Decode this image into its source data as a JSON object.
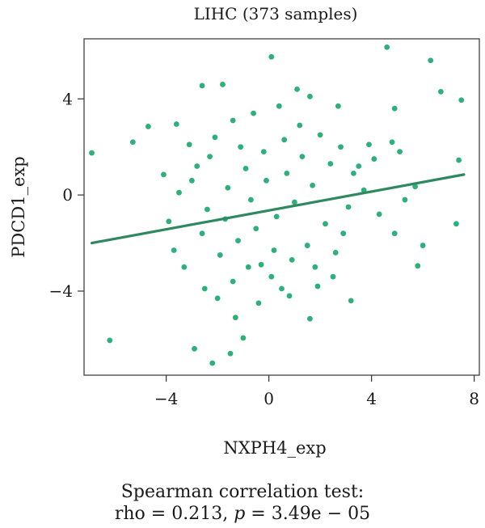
{
  "chart_data": {
    "type": "scatter",
    "title": "LIHC (373 samples)",
    "xlabel": "NXPH4_exp",
    "ylabel": "PDCD1_exp",
    "xlim": [
      -7.2,
      8.2
    ],
    "ylim": [
      -7.5,
      6.5
    ],
    "xticks": [
      -4,
      0,
      4,
      8
    ],
    "yticks": [
      -4,
      0,
      4
    ],
    "xtick_labels": [
      "−4",
      "0",
      "4",
      "8"
    ],
    "ytick_labels": [
      "−4",
      "0",
      "4"
    ],
    "grid": false,
    "point_color": "#2db07a",
    "line_color": "#2e8a5e",
    "fit_line": {
      "x": [
        -6.9,
        7.6
      ],
      "y": [
        -2.0,
        0.85
      ]
    },
    "points": [
      {
        "x": -6.9,
        "y": 1.75
      },
      {
        "x": -6.2,
        "y": -6.05
      },
      {
        "x": -5.3,
        "y": 2.2
      },
      {
        "x": -4.7,
        "y": 2.85
      },
      {
        "x": -4.1,
        "y": 0.85
      },
      {
        "x": -3.6,
        "y": 2.95
      },
      {
        "x": -3.1,
        "y": 2.1
      },
      {
        "x": -2.6,
        "y": 4.55
      },
      {
        "x": -1.8,
        "y": 4.6
      },
      {
        "x": 0.1,
        "y": 5.75
      },
      {
        "x": 4.6,
        "y": 6.15
      },
      {
        "x": 6.3,
        "y": 5.6
      },
      {
        "x": 7.5,
        "y": 3.95
      },
      {
        "x": 6.7,
        "y": 4.3
      },
      {
        "x": 4.9,
        "y": 3.6
      },
      {
        "x": 1.1,
        "y": 4.4
      },
      {
        "x": 1.6,
        "y": 4.1
      },
      {
        "x": 2.7,
        "y": 3.7
      },
      {
        "x": -2.9,
        "y": -6.4
      },
      {
        "x": -2.2,
        "y": -7.0
      },
      {
        "x": -1.5,
        "y": -6.6
      },
      {
        "x": -1.0,
        "y": -5.95
      },
      {
        "x": 1.6,
        "y": -5.15
      },
      {
        "x": 3.2,
        "y": -4.4
      },
      {
        "x": 5.8,
        "y": -2.95
      },
      {
        "x": 6.0,
        "y": -2.1
      },
      {
        "x": 7.3,
        "y": -1.2
      },
      {
        "x": 7.4,
        "y": 1.45
      },
      {
        "x": 5.7,
        "y": 0.35
      },
      {
        "x": 5.1,
        "y": 1.8
      },
      {
        "x": 4.8,
        "y": 2.2
      },
      {
        "x": 3.9,
        "y": 2.1
      },
      {
        "x": 3.5,
        "y": 1.2
      },
      {
        "x": 2.9,
        "y": -1.6
      },
      {
        "x": 2.6,
        "y": -2.4
      },
      {
        "x": 1.9,
        "y": -3.8
      },
      {
        "x": 0.8,
        "y": -4.2
      },
      {
        "x": -0.4,
        "y": -4.5
      },
      {
        "x": -1.3,
        "y": -5.1
      },
      {
        "x": -2.5,
        "y": -3.9
      },
      {
        "x": -3.3,
        "y": -3.0
      },
      {
        "x": -3.7,
        "y": -2.3
      },
      {
        "x": -3.9,
        "y": -1.1
      },
      {
        "x": -3.5,
        "y": 0.1
      },
      {
        "x": -2.8,
        "y": 1.2
      },
      {
        "x": -2.1,
        "y": 2.4
      },
      {
        "x": -1.4,
        "y": 3.1
      },
      {
        "x": -0.6,
        "y": 3.4
      },
      {
        "x": 0.4,
        "y": 3.7
      },
      {
        "x": 1.2,
        "y": 2.9
      },
      {
        "x": 2.0,
        "y": 2.5
      },
      {
        "x": 2.4,
        "y": 1.3
      },
      {
        "x": 1.7,
        "y": 0.4
      },
      {
        "x": 1.0,
        "y": -0.3
      },
      {
        "x": 0.3,
        "y": -0.9
      },
      {
        "x": -0.5,
        "y": -1.4
      },
      {
        "x": -1.2,
        "y": -1.9
      },
      {
        "x": -1.9,
        "y": -2.5
      },
      {
        "x": -0.8,
        "y": -3.0
      },
      {
        "x": 0.1,
        "y": -3.4
      },
      {
        "x": 0.9,
        "y": -2.7
      },
      {
        "x": 1.5,
        "y": -2.1
      },
      {
        "x": 2.2,
        "y": -1.2
      },
      {
        "x": 3.1,
        "y": -0.5
      },
      {
        "x": 3.7,
        "y": 0.2
      },
      {
        "x": 4.3,
        "y": -0.8
      },
      {
        "x": 4.9,
        "y": -1.6
      },
      {
        "x": 5.3,
        "y": -0.2
      },
      {
        "x": 4.1,
        "y": 1.5
      },
      {
        "x": 3.3,
        "y": 0.9
      },
      {
        "x": -2.4,
        "y": -0.6
      },
      {
        "x": -1.6,
        "y": 0.3
      },
      {
        "x": -0.9,
        "y": 1.1
      },
      {
        "x": -0.2,
        "y": 1.8
      },
      {
        "x": 0.6,
        "y": 2.3
      },
      {
        "x": -1.1,
        "y": 2.0
      },
      {
        "x": -0.1,
        "y": 0.6
      },
      {
        "x": 0.7,
        "y": 0.9
      },
      {
        "x": -0.7,
        "y": -0.2
      },
      {
        "x": -1.7,
        "y": -1.0
      },
      {
        "x": -2.6,
        "y": -1.6
      },
      {
        "x": -3.0,
        "y": 0.6
      },
      {
        "x": -2.3,
        "y": 1.6
      },
      {
        "x": 1.3,
        "y": 1.6
      },
      {
        "x": 2.8,
        "y": 2.0
      },
      {
        "x": 0.2,
        "y": -2.3
      },
      {
        "x": -0.3,
        "y": -2.9
      },
      {
        "x": 1.8,
        "y": -3.0
      },
      {
        "x": 2.5,
        "y": -3.4
      },
      {
        "x": -1.4,
        "y": -3.6
      },
      {
        "x": -2.0,
        "y": -4.3
      },
      {
        "x": 0.5,
        "y": -3.9
      }
    ]
  },
  "footer": {
    "line1": "Spearman correlation test:",
    "line2_prefix": "rho = 0.213, ",
    "line2_p": "p",
    "line2_suffix": " = 3.49e − 05"
  }
}
